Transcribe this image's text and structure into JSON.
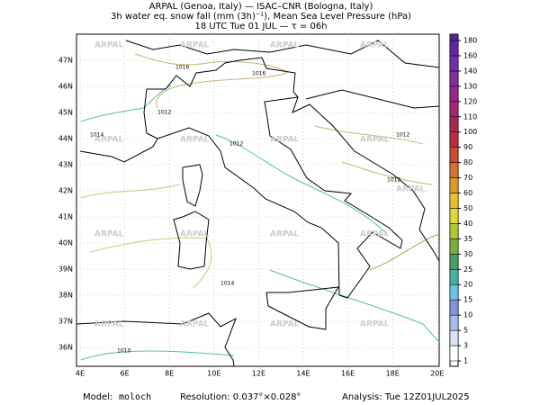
{
  "header": {
    "line1": "ARPAL (Genoa, Italy)  —  ISAC–CNR (Bologna, Italy)",
    "line2": "3h water eq. snow fall (mm (3h)⁻¹), Mean Sea Level Pressure (hPa)",
    "line3": "18 UTC Tue 01 JUL  —  τ = 06h"
  },
  "watermark": "ARPAL",
  "lat_labels": [
    "47N",
    "46N",
    "45N",
    "44N",
    "43N",
    "42N",
    "41N",
    "40N",
    "39N",
    "38N",
    "37N",
    "36N"
  ],
  "lon_labels": [
    "4E",
    "6E",
    "8E",
    "10E",
    "12E",
    "14E",
    "16E",
    "18E",
    "20E"
  ],
  "colorbar": {
    "labels": [
      1,
      3,
      5,
      10,
      15,
      20,
      25,
      30,
      35,
      40,
      50,
      60,
      70,
      80,
      90,
      100,
      110,
      120,
      130,
      140,
      160,
      180
    ]
  },
  "contour_labels": [
    "1016",
    "1016",
    "1014",
    "1014",
    "1012",
    "1012",
    "1012",
    "1010",
    "1012"
  ],
  "footer": {
    "model_label": "Model:",
    "model": "moloch",
    "resolution": "Resolution: 0.037°×0.028°",
    "analysis": "Analysis: Tue 12Z01JUL2025"
  }
}
